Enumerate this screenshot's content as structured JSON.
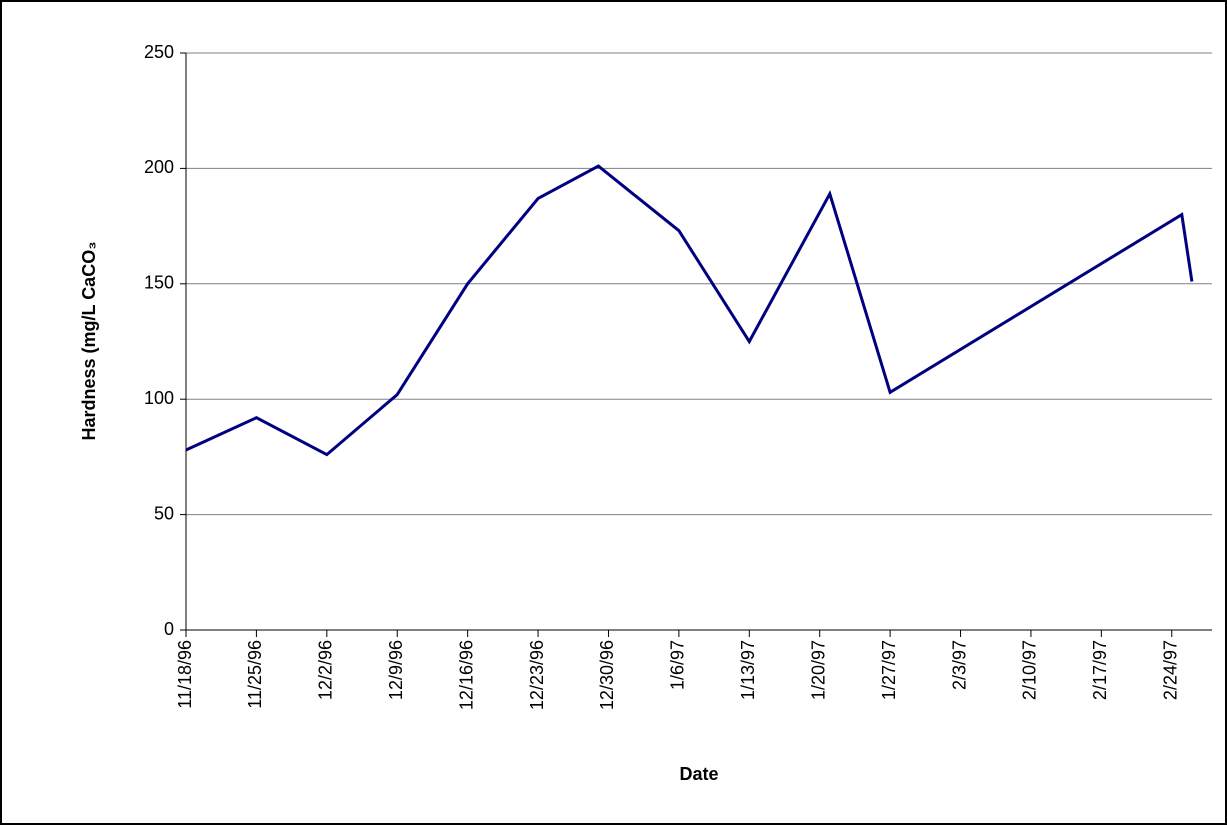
{
  "chart_data": {
    "type": "line",
    "x_label": "Date",
    "y_label": "Hardness (mg/L CaCO₃",
    "x": [
      "1996-11-18",
      "1996-11-25",
      "1996-12-02",
      "1996-12-09",
      "1996-12-16",
      "1996-12-23",
      "1996-12-29",
      "1997-01-06",
      "1997-01-13",
      "1997-01-21",
      "1997-01-27",
      "1997-02-25",
      "1997-02-26"
    ],
    "series": [
      {
        "name": "Hardness",
        "color": "#000080",
        "values": [
          78,
          92,
          76,
          102,
          150,
          187,
          201,
          173,
          125,
          189,
          103,
          180,
          151
        ]
      }
    ],
    "xlim": [
      "1996-11-18",
      "1997-02-28"
    ],
    "xticks": [
      {
        "value": "1996-11-18",
        "label": "11/18/96"
      },
      {
        "value": "1996-11-25",
        "label": "11/25/96"
      },
      {
        "value": "1996-12-02",
        "label": "12/2/96"
      },
      {
        "value": "1996-12-09",
        "label": "12/9/96"
      },
      {
        "value": "1996-12-16",
        "label": "12/16/96"
      },
      {
        "value": "1996-12-23",
        "label": "12/23/96"
      },
      {
        "value": "1996-12-30",
        "label": "12/30/96"
      },
      {
        "value": "1997-01-06",
        "label": "1/6/97"
      },
      {
        "value": "1997-01-13",
        "label": "1/13/97"
      },
      {
        "value": "1997-01-20",
        "label": "1/20/97"
      },
      {
        "value": "1997-01-27",
        "label": "1/27/97"
      },
      {
        "value": "1997-02-03",
        "label": "2/3/97"
      },
      {
        "value": "1997-02-10",
        "label": "2/10/97"
      },
      {
        "value": "1997-02-17",
        "label": "2/17/97"
      },
      {
        "value": "1997-02-24",
        "label": "2/24/97"
      }
    ],
    "ylim": [
      0,
      250
    ],
    "yticks": [
      0,
      50,
      100,
      150,
      200,
      250
    ],
    "grid": true
  }
}
